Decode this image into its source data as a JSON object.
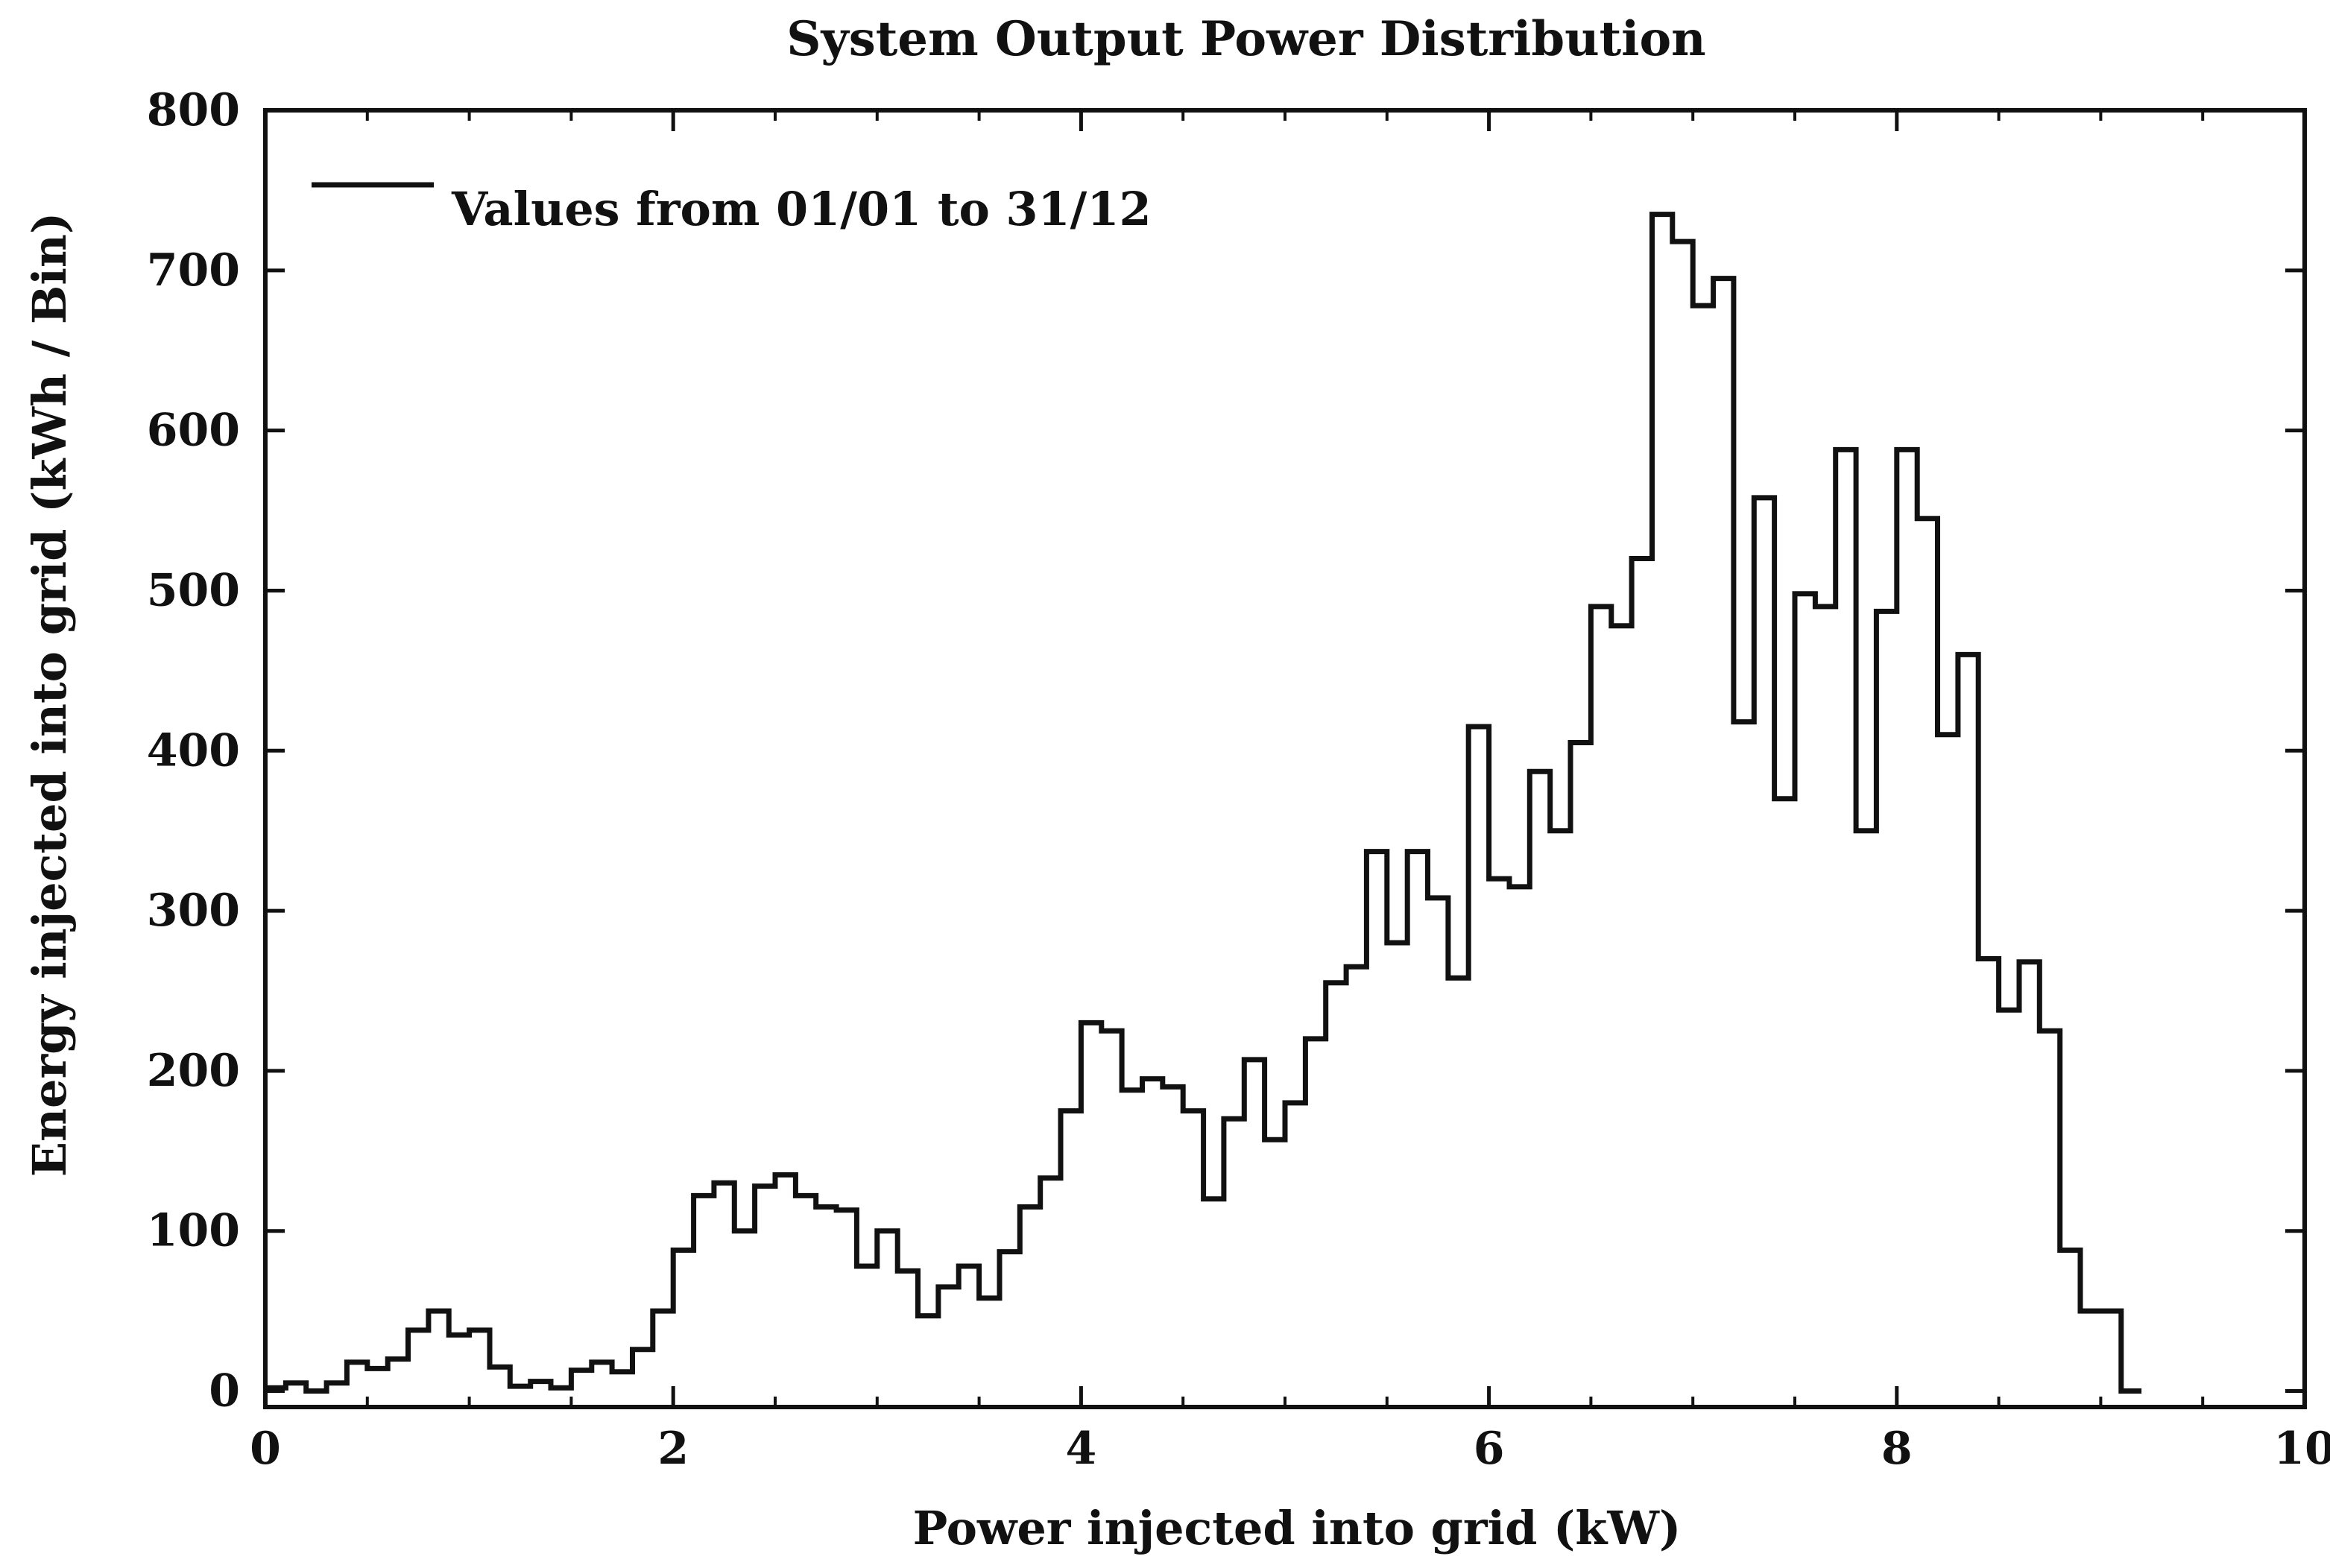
{
  "chart_data": {
    "type": "line",
    "style": "step-histogram",
    "title": "System Output Power Distribution",
    "xlabel": "Power injected into grid (kW)",
    "ylabel": "Energy injected into grid (kWh / Bin)",
    "xlim": [
      0,
      10
    ],
    "ylim": [
      -10,
      800
    ],
    "x_ticks": [
      "0",
      "2",
      "4",
      "6",
      "8",
      "10"
    ],
    "y_ticks": [
      "0",
      "100",
      "200",
      "300",
      "400",
      "500",
      "600",
      "700",
      "800"
    ],
    "legend": {
      "label": "Values from 01/01 to 31/12",
      "position": "top-left"
    },
    "series": [
      {
        "name": "Values from 01/01 to 31/12",
        "bin_width": 0.1,
        "x": [
          0.0,
          0.1,
          0.2,
          0.3,
          0.4,
          0.5,
          0.6,
          0.7,
          0.8,
          0.9,
          1.0,
          1.1,
          1.2,
          1.3,
          1.4,
          1.5,
          1.6,
          1.7,
          1.8,
          1.9,
          2.0,
          2.1,
          2.2,
          2.3,
          2.4,
          2.5,
          2.6,
          2.7,
          2.8,
          2.9,
          3.0,
          3.1,
          3.2,
          3.3,
          3.4,
          3.5,
          3.6,
          3.7,
          3.8,
          3.9,
          4.0,
          4.1,
          4.2,
          4.3,
          4.4,
          4.5,
          4.6,
          4.7,
          4.8,
          4.9,
          5.0,
          5.1,
          5.2,
          5.3,
          5.4,
          5.5,
          5.6,
          5.7,
          5.8,
          5.9,
          6.0,
          6.1,
          6.2,
          6.3,
          6.4,
          6.5,
          6.6,
          6.7,
          6.8,
          6.9,
          7.0,
          7.1,
          7.2,
          7.3,
          7.4,
          7.5,
          7.6,
          7.7,
          7.8,
          7.9,
          8.0,
          8.1,
          8.2,
          8.3,
          8.4,
          8.5,
          8.6,
          8.7,
          8.8,
          8.9,
          9.0,
          9.1
        ],
        "values": [
          2,
          5,
          0,
          5,
          18,
          14,
          20,
          38,
          50,
          35,
          38,
          15,
          3,
          6,
          2,
          13,
          18,
          12,
          26,
          50,
          88,
          122,
          130,
          100,
          128,
          135,
          122,
          115,
          113,
          78,
          100,
          75,
          47,
          65,
          78,
          58,
          87,
          115,
          133,
          175,
          230,
          225,
          188,
          195,
          190,
          175,
          120,
          170,
          207,
          157,
          180,
          220,
          255,
          265,
          337,
          280,
          337,
          308,
          258,
          415,
          320,
          315,
          387,
          350,
          405,
          490,
          478,
          520,
          735,
          718,
          678,
          695,
          418,
          558,
          370,
          498,
          490,
          588,
          350,
          487,
          588,
          545,
          410,
          460,
          270,
          238,
          268,
          225,
          88,
          50,
          50,
          0
        ]
      }
    ]
  }
}
